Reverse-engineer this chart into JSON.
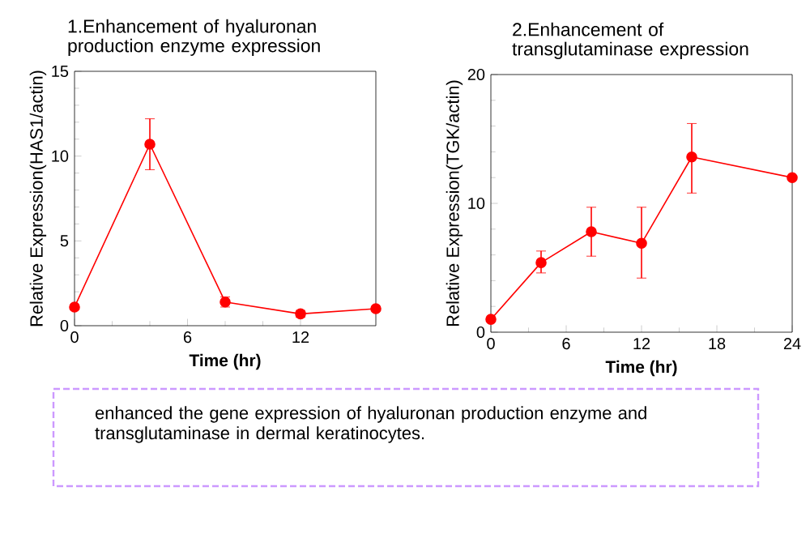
{
  "chart_data": [
    {
      "type": "line",
      "title": "1.Enhancement of hyaluronan production enzyme expression",
      "xlabel": "Time (hr)",
      "ylabel": "Relative Expression(HAS1/actin)",
      "x": [
        0,
        4,
        8,
        12,
        16
      ],
      "values": [
        1.1,
        10.7,
        1.4,
        0.7,
        1.0
      ],
      "errors": [
        null,
        1.5,
        0.3,
        0.2,
        null
      ],
      "color": "#ff0000",
      "marker": "circle",
      "line_style": "solid",
      "xlim": [
        0,
        16
      ],
      "xticks": [
        0,
        6,
        12
      ],
      "ylim": [
        0,
        15
      ],
      "yticks": [
        0,
        5,
        10,
        15
      ],
      "annotations": [
        "enhanced the gene expression of hyaluronan production enzyme and transglutaminase in dermal keratinocytes."
      ]
    },
    {
      "type": "line",
      "title": "2.Enhancement of transglutaminase expression",
      "xlabel": "Time (hr)",
      "ylabel": "Relative Expression(TGK/actin)",
      "x": [
        0,
        4,
        8,
        12,
        16,
        24
      ],
      "values": [
        1.0,
        5.4,
        7.8,
        6.9,
        13.6,
        12.0
      ],
      "errors": [
        null,
        [
          4.6,
          6.3
        ],
        [
          5.9,
          9.7
        ],
        [
          4.2,
          9.7
        ],
        [
          10.8,
          16.2
        ],
        null
      ],
      "color": "#ff0000",
      "marker": "circle",
      "line_style": "solid",
      "xlim": [
        0,
        24
      ],
      "xticks": [
        0,
        6,
        12,
        18,
        24
      ],
      "ylim": [
        0,
        20
      ],
      "yticks": [
        0,
        10,
        20
      ]
    }
  ]
}
